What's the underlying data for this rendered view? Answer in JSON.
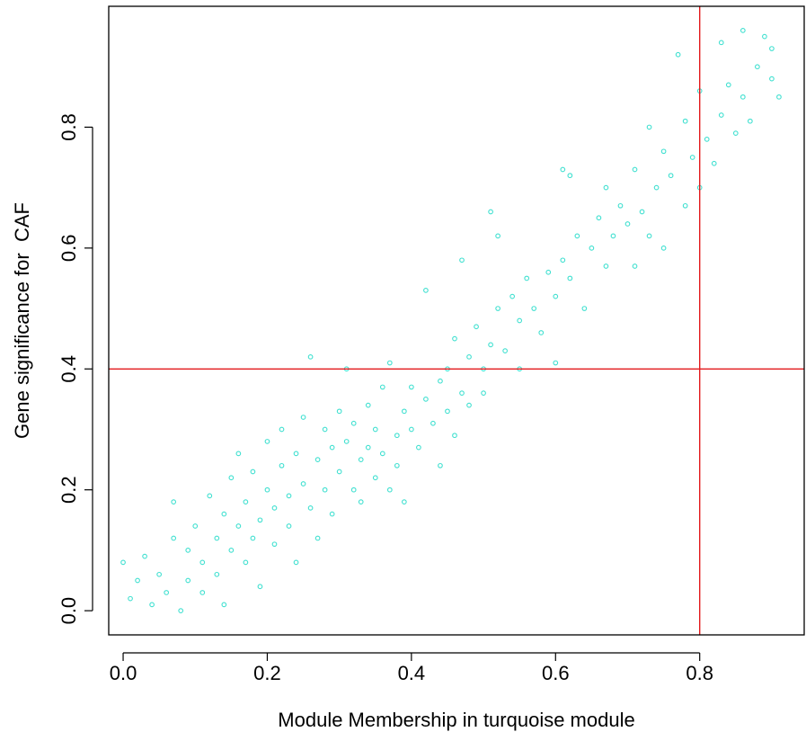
{
  "chart_data": {
    "type": "scatter",
    "title": "",
    "xlabel": "Module Membership in turquoise module",
    "ylabel": "Gene significance for  CAF",
    "xlim": [
      -0.02,
      0.945
    ],
    "ylim": [
      -0.04,
      1.0
    ],
    "x_ticks": [
      0.0,
      0.2,
      0.4,
      0.6,
      0.8
    ],
    "x_tick_labels": [
      "0.0",
      "0.2",
      "0.4",
      "0.6",
      "0.8"
    ],
    "y_ticks": [
      0.0,
      0.2,
      0.4,
      0.6,
      0.8
    ],
    "y_tick_labels": [
      "0.0",
      "0.2",
      "0.4",
      "0.6",
      "0.8"
    ],
    "grid": false,
    "legend": "none",
    "reference_lines": {
      "vertical_x": 0.8,
      "horizontal_y": 0.4,
      "color": "#e31a1c"
    },
    "point_color": "#40e0d0",
    "series": [
      {
        "points": [
          [
            0.0,
            0.08
          ],
          [
            0.01,
            0.02
          ],
          [
            0.02,
            0.05
          ],
          [
            0.03,
            0.09
          ],
          [
            0.04,
            0.01
          ],
          [
            0.05,
            0.06
          ],
          [
            0.06,
            0.03
          ],
          [
            0.07,
            0.12
          ],
          [
            0.07,
            0.18
          ],
          [
            0.08,
            0.0
          ],
          [
            0.09,
            0.1
          ],
          [
            0.09,
            0.05
          ],
          [
            0.1,
            0.14
          ],
          [
            0.11,
            0.08
          ],
          [
            0.11,
            0.03
          ],
          [
            0.12,
            0.19
          ],
          [
            0.13,
            0.12
          ],
          [
            0.13,
            0.06
          ],
          [
            0.14,
            0.16
          ],
          [
            0.14,
            0.01
          ],
          [
            0.15,
            0.22
          ],
          [
            0.15,
            0.1
          ],
          [
            0.16,
            0.14
          ],
          [
            0.16,
            0.26
          ],
          [
            0.17,
            0.18
          ],
          [
            0.17,
            0.08
          ],
          [
            0.18,
            0.12
          ],
          [
            0.18,
            0.23
          ],
          [
            0.19,
            0.04
          ],
          [
            0.19,
            0.15
          ],
          [
            0.2,
            0.2
          ],
          [
            0.2,
            0.28
          ],
          [
            0.21,
            0.11
          ],
          [
            0.21,
            0.17
          ],
          [
            0.22,
            0.24
          ],
          [
            0.22,
            0.3
          ],
          [
            0.23,
            0.14
          ],
          [
            0.23,
            0.19
          ],
          [
            0.24,
            0.26
          ],
          [
            0.24,
            0.08
          ],
          [
            0.25,
            0.21
          ],
          [
            0.25,
            0.32
          ],
          [
            0.26,
            0.17
          ],
          [
            0.26,
            0.42
          ],
          [
            0.27,
            0.25
          ],
          [
            0.27,
            0.12
          ],
          [
            0.28,
            0.3
          ],
          [
            0.28,
            0.2
          ],
          [
            0.29,
            0.27
          ],
          [
            0.29,
            0.16
          ],
          [
            0.3,
            0.33
          ],
          [
            0.3,
            0.23
          ],
          [
            0.31,
            0.28
          ],
          [
            0.31,
            0.4
          ],
          [
            0.32,
            0.2
          ],
          [
            0.32,
            0.31
          ],
          [
            0.33,
            0.25
          ],
          [
            0.33,
            0.18
          ],
          [
            0.34,
            0.34
          ],
          [
            0.34,
            0.27
          ],
          [
            0.35,
            0.22
          ],
          [
            0.35,
            0.3
          ],
          [
            0.36,
            0.26
          ],
          [
            0.36,
            0.37
          ],
          [
            0.37,
            0.2
          ],
          [
            0.37,
            0.41
          ],
          [
            0.38,
            0.29
          ],
          [
            0.38,
            0.24
          ],
          [
            0.39,
            0.33
          ],
          [
            0.39,
            0.18
          ],
          [
            0.4,
            0.3
          ],
          [
            0.4,
            0.37
          ],
          [
            0.41,
            0.27
          ],
          [
            0.42,
            0.35
          ],
          [
            0.42,
            0.53
          ],
          [
            0.43,
            0.31
          ],
          [
            0.44,
            0.38
          ],
          [
            0.44,
            0.24
          ],
          [
            0.45,
            0.4
          ],
          [
            0.45,
            0.33
          ],
          [
            0.46,
            0.45
          ],
          [
            0.46,
            0.29
          ],
          [
            0.47,
            0.58
          ],
          [
            0.47,
            0.36
          ],
          [
            0.48,
            0.42
          ],
          [
            0.48,
            0.34
          ],
          [
            0.49,
            0.47
          ],
          [
            0.5,
            0.4
          ],
          [
            0.5,
            0.36
          ],
          [
            0.51,
            0.66
          ],
          [
            0.51,
            0.44
          ],
          [
            0.52,
            0.5
          ],
          [
            0.52,
            0.62
          ],
          [
            0.53,
            0.43
          ],
          [
            0.54,
            0.52
          ],
          [
            0.55,
            0.48
          ],
          [
            0.55,
            0.4
          ],
          [
            0.56,
            0.55
          ],
          [
            0.57,
            0.5
          ],
          [
            0.58,
            0.46
          ],
          [
            0.59,
            0.56
          ],
          [
            0.6,
            0.52
          ],
          [
            0.6,
            0.41
          ],
          [
            0.61,
            0.73
          ],
          [
            0.61,
            0.58
          ],
          [
            0.62,
            0.72
          ],
          [
            0.62,
            0.55
          ],
          [
            0.63,
            0.62
          ],
          [
            0.64,
            0.5
          ],
          [
            0.65,
            0.6
          ],
          [
            0.66,
            0.65
          ],
          [
            0.67,
            0.7
          ],
          [
            0.67,
            0.57
          ],
          [
            0.68,
            0.62
          ],
          [
            0.69,
            0.67
          ],
          [
            0.7,
            0.64
          ],
          [
            0.71,
            0.73
          ],
          [
            0.71,
            0.57
          ],
          [
            0.72,
            0.66
          ],
          [
            0.73,
            0.8
          ],
          [
            0.73,
            0.62
          ],
          [
            0.74,
            0.7
          ],
          [
            0.75,
            0.76
          ],
          [
            0.75,
            0.6
          ],
          [
            0.76,
            0.72
          ],
          [
            0.77,
            0.92
          ],
          [
            0.78,
            0.81
          ],
          [
            0.78,
            0.67
          ],
          [
            0.79,
            0.75
          ],
          [
            0.8,
            0.7
          ],
          [
            0.8,
            0.86
          ],
          [
            0.81,
            0.78
          ],
          [
            0.82,
            0.74
          ],
          [
            0.83,
            0.82
          ],
          [
            0.83,
            0.94
          ],
          [
            0.84,
            0.87
          ],
          [
            0.85,
            0.79
          ],
          [
            0.86,
            0.96
          ],
          [
            0.86,
            0.85
          ],
          [
            0.87,
            0.81
          ],
          [
            0.88,
            0.9
          ],
          [
            0.89,
            0.95
          ],
          [
            0.9,
            0.88
          ],
          [
            0.9,
            0.93
          ],
          [
            0.91,
            0.85
          ]
        ]
      }
    ]
  }
}
